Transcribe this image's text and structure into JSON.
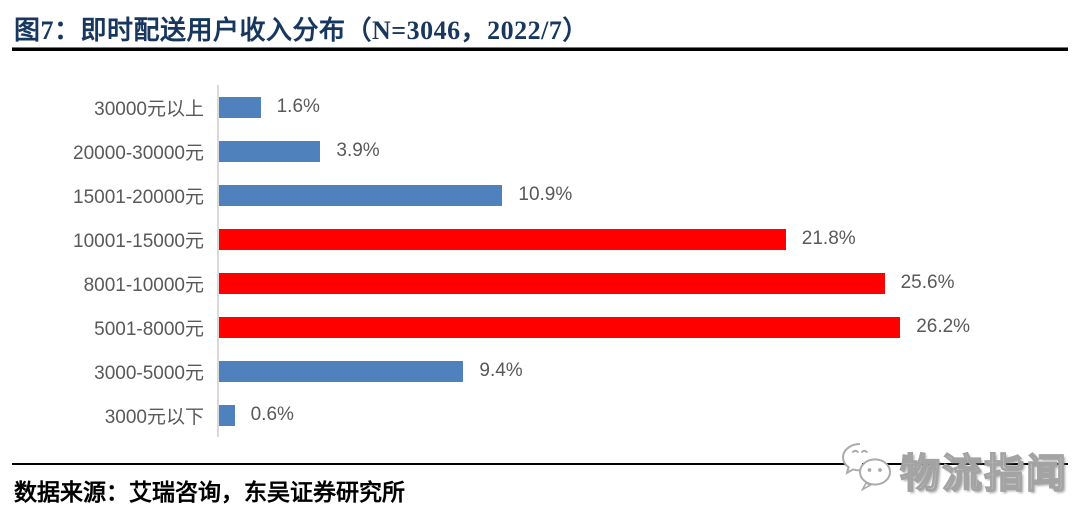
{
  "header": {
    "title": "图7：即时配送用户收入分布（N=3046，2022/7）",
    "title_color": "#17375E"
  },
  "chart_data": {
    "type": "bar",
    "orientation": "horizontal",
    "title": "即时配送用户收入分布",
    "sample_note": "N=3046，2022/7",
    "categories": [
      "30000元以上",
      "20000-30000元",
      "15001-20000元",
      "10001-15000元",
      "8001-10000元",
      "5001-8000元",
      "3000-5000元",
      "3000元以下"
    ],
    "values": [
      1.6,
      3.9,
      10.9,
      21.8,
      25.6,
      26.2,
      9.4,
      0.6
    ],
    "value_labels": [
      "1.6%",
      "3.9%",
      "10.9%",
      "21.8%",
      "25.6%",
      "26.2%",
      "9.4%",
      "0.6%"
    ],
    "bar_colors": [
      "#4F81BD",
      "#4F81BD",
      "#4F81BD",
      "#FF0000",
      "#FF0000",
      "#FF0000",
      "#4F81BD",
      "#4F81BD"
    ],
    "xlim": [
      0,
      30
    ],
    "grid": false,
    "legend": false,
    "axis_line_color": "#D9D9D9",
    "label_color": "#595959"
  },
  "footer": {
    "source": "数据来源：艾瑞咨询，东吴证券研究所"
  },
  "watermark": {
    "text": "物流指闻",
    "icon": "wechat-icon"
  }
}
